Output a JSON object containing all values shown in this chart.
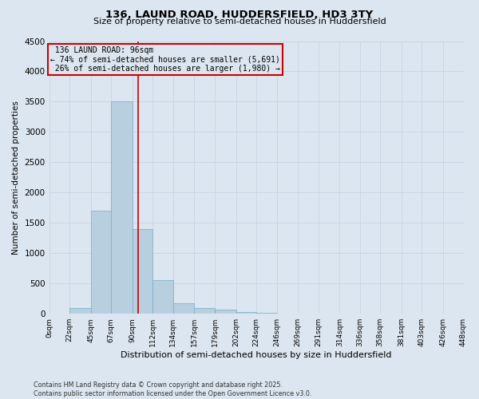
{
  "title1": "136, LAUND ROAD, HUDDERSFIELD, HD3 3TY",
  "title2": "Size of property relative to semi-detached houses in Huddersfield",
  "xlabel": "Distribution of semi-detached houses by size in Huddersfield",
  "ylabel": "Number of semi-detached properties",
  "bin_edges": [
    0,
    22,
    45,
    67,
    90,
    112,
    134,
    157,
    179,
    202,
    224,
    246,
    269,
    291,
    314,
    336,
    358,
    381,
    403,
    426,
    448
  ],
  "bin_labels": [
    "0sqm",
    "22sqm",
    "45sqm",
    "67sqm",
    "90sqm",
    "112sqm",
    "134sqm",
    "157sqm",
    "179sqm",
    "202sqm",
    "224sqm",
    "246sqm",
    "269sqm",
    "291sqm",
    "314sqm",
    "336sqm",
    "358sqm",
    "381sqm",
    "403sqm",
    "426sqm",
    "448sqm"
  ],
  "bar_heights": [
    0,
    100,
    1700,
    3500,
    1400,
    550,
    180,
    100,
    70,
    30,
    10,
    8,
    5,
    3,
    2,
    1,
    1,
    0,
    0,
    0
  ],
  "bar_color": "#b8cfe0",
  "bar_edge_color": "#7aaac8",
  "property_size": 96,
  "property_label": "136 LAUND ROAD: 96sqm",
  "pct_smaller": 74,
  "n_smaller": 5691,
  "pct_larger": 26,
  "n_larger": 1980,
  "vline_color": "#cc0000",
  "box_edge_color": "#cc0000",
  "ylim": [
    0,
    4500
  ],
  "yticks": [
    0,
    500,
    1000,
    1500,
    2000,
    2500,
    3000,
    3500,
    4000,
    4500
  ],
  "grid_color": "#c8d4e3",
  "background_color": "#dce6f0",
  "footnote1": "Contains HM Land Registry data © Crown copyright and database right 2025.",
  "footnote2": "Contains public sector information licensed under the Open Government Licence v3.0."
}
